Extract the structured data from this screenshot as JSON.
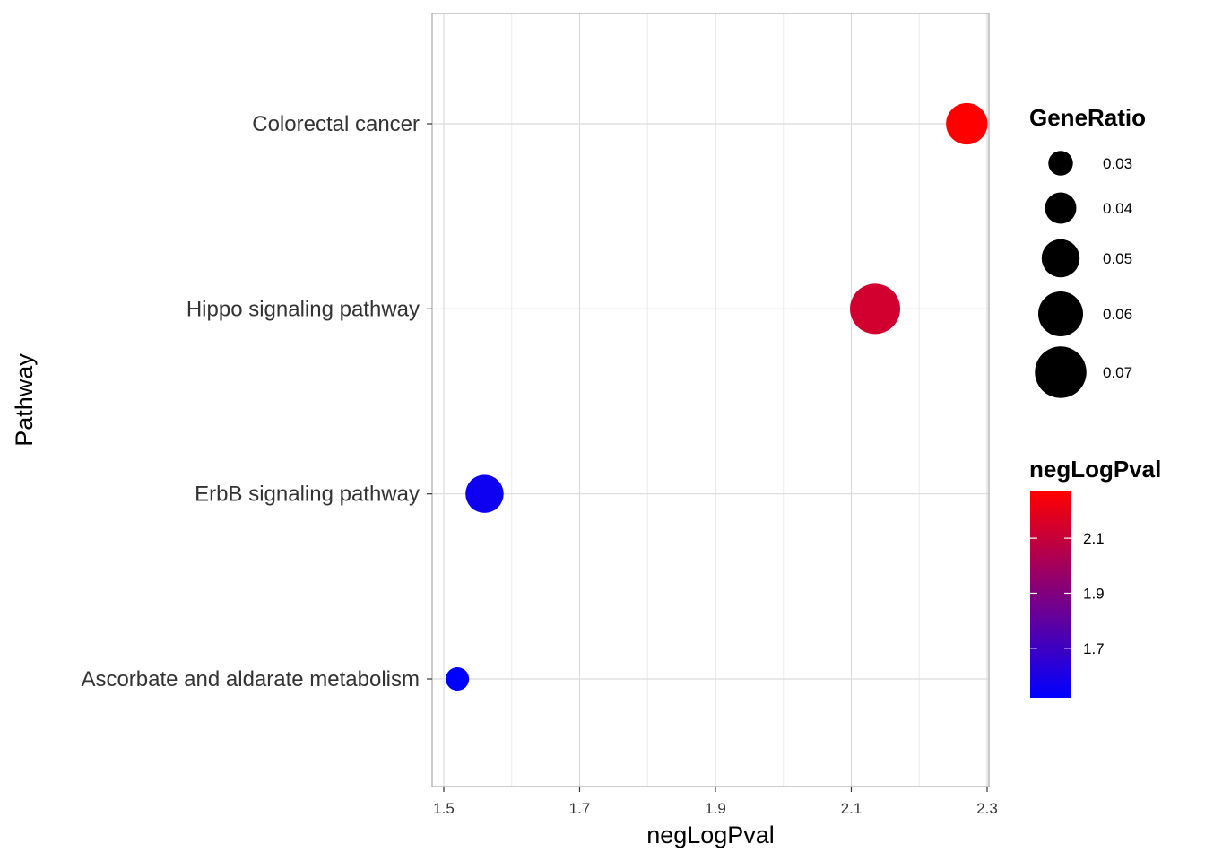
{
  "chart_data": {
    "type": "scatter",
    "title": "",
    "xlabel": "negLogPval",
    "ylabel": "Pathway",
    "xlim": [
      1.48,
      2.3
    ],
    "xticks": [
      1.5,
      1.7,
      1.9,
      2.1,
      2.3
    ],
    "xtick_labels": [
      "1.5",
      "1.7",
      "1.9",
      "2.1",
      "2.3"
    ],
    "categories": [
      "Ascorbate and aldarate metabolism",
      "ErbB signaling pathway",
      "Hippo signaling pathway",
      "Colorectal cancer"
    ],
    "points": [
      {
        "pathway": "Colorectal cancer",
        "negLogPval": 2.27,
        "GeneRatio": 0.055
      },
      {
        "pathway": "Hippo signaling pathway",
        "negLogPval": 2.135,
        "GeneRatio": 0.068
      },
      {
        "pathway": "ErbB signaling pathway",
        "negLogPval": 1.56,
        "GeneRatio": 0.05
      },
      {
        "pathway": "Ascorbate and aldarate metabolism",
        "negLogPval": 1.52,
        "GeneRatio": 0.028
      }
    ],
    "grid": true,
    "legend_placement": "right",
    "size_legend": {
      "title": "GeneRatio",
      "values": [
        0.03,
        0.04,
        0.05,
        0.06,
        0.07
      ],
      "labels": [
        "0.03",
        "0.04",
        "0.05",
        "0.06",
        "0.07"
      ],
      "color": "#000000"
    },
    "color_legend": {
      "title": "negLogPval",
      "low": 1.52,
      "high": 2.27,
      "low_color": "#0000FF",
      "high_color": "#FF0000",
      "breaks": [
        1.7,
        1.9,
        2.1
      ],
      "labels": [
        "1.7",
        "1.9",
        "2.1"
      ]
    }
  }
}
